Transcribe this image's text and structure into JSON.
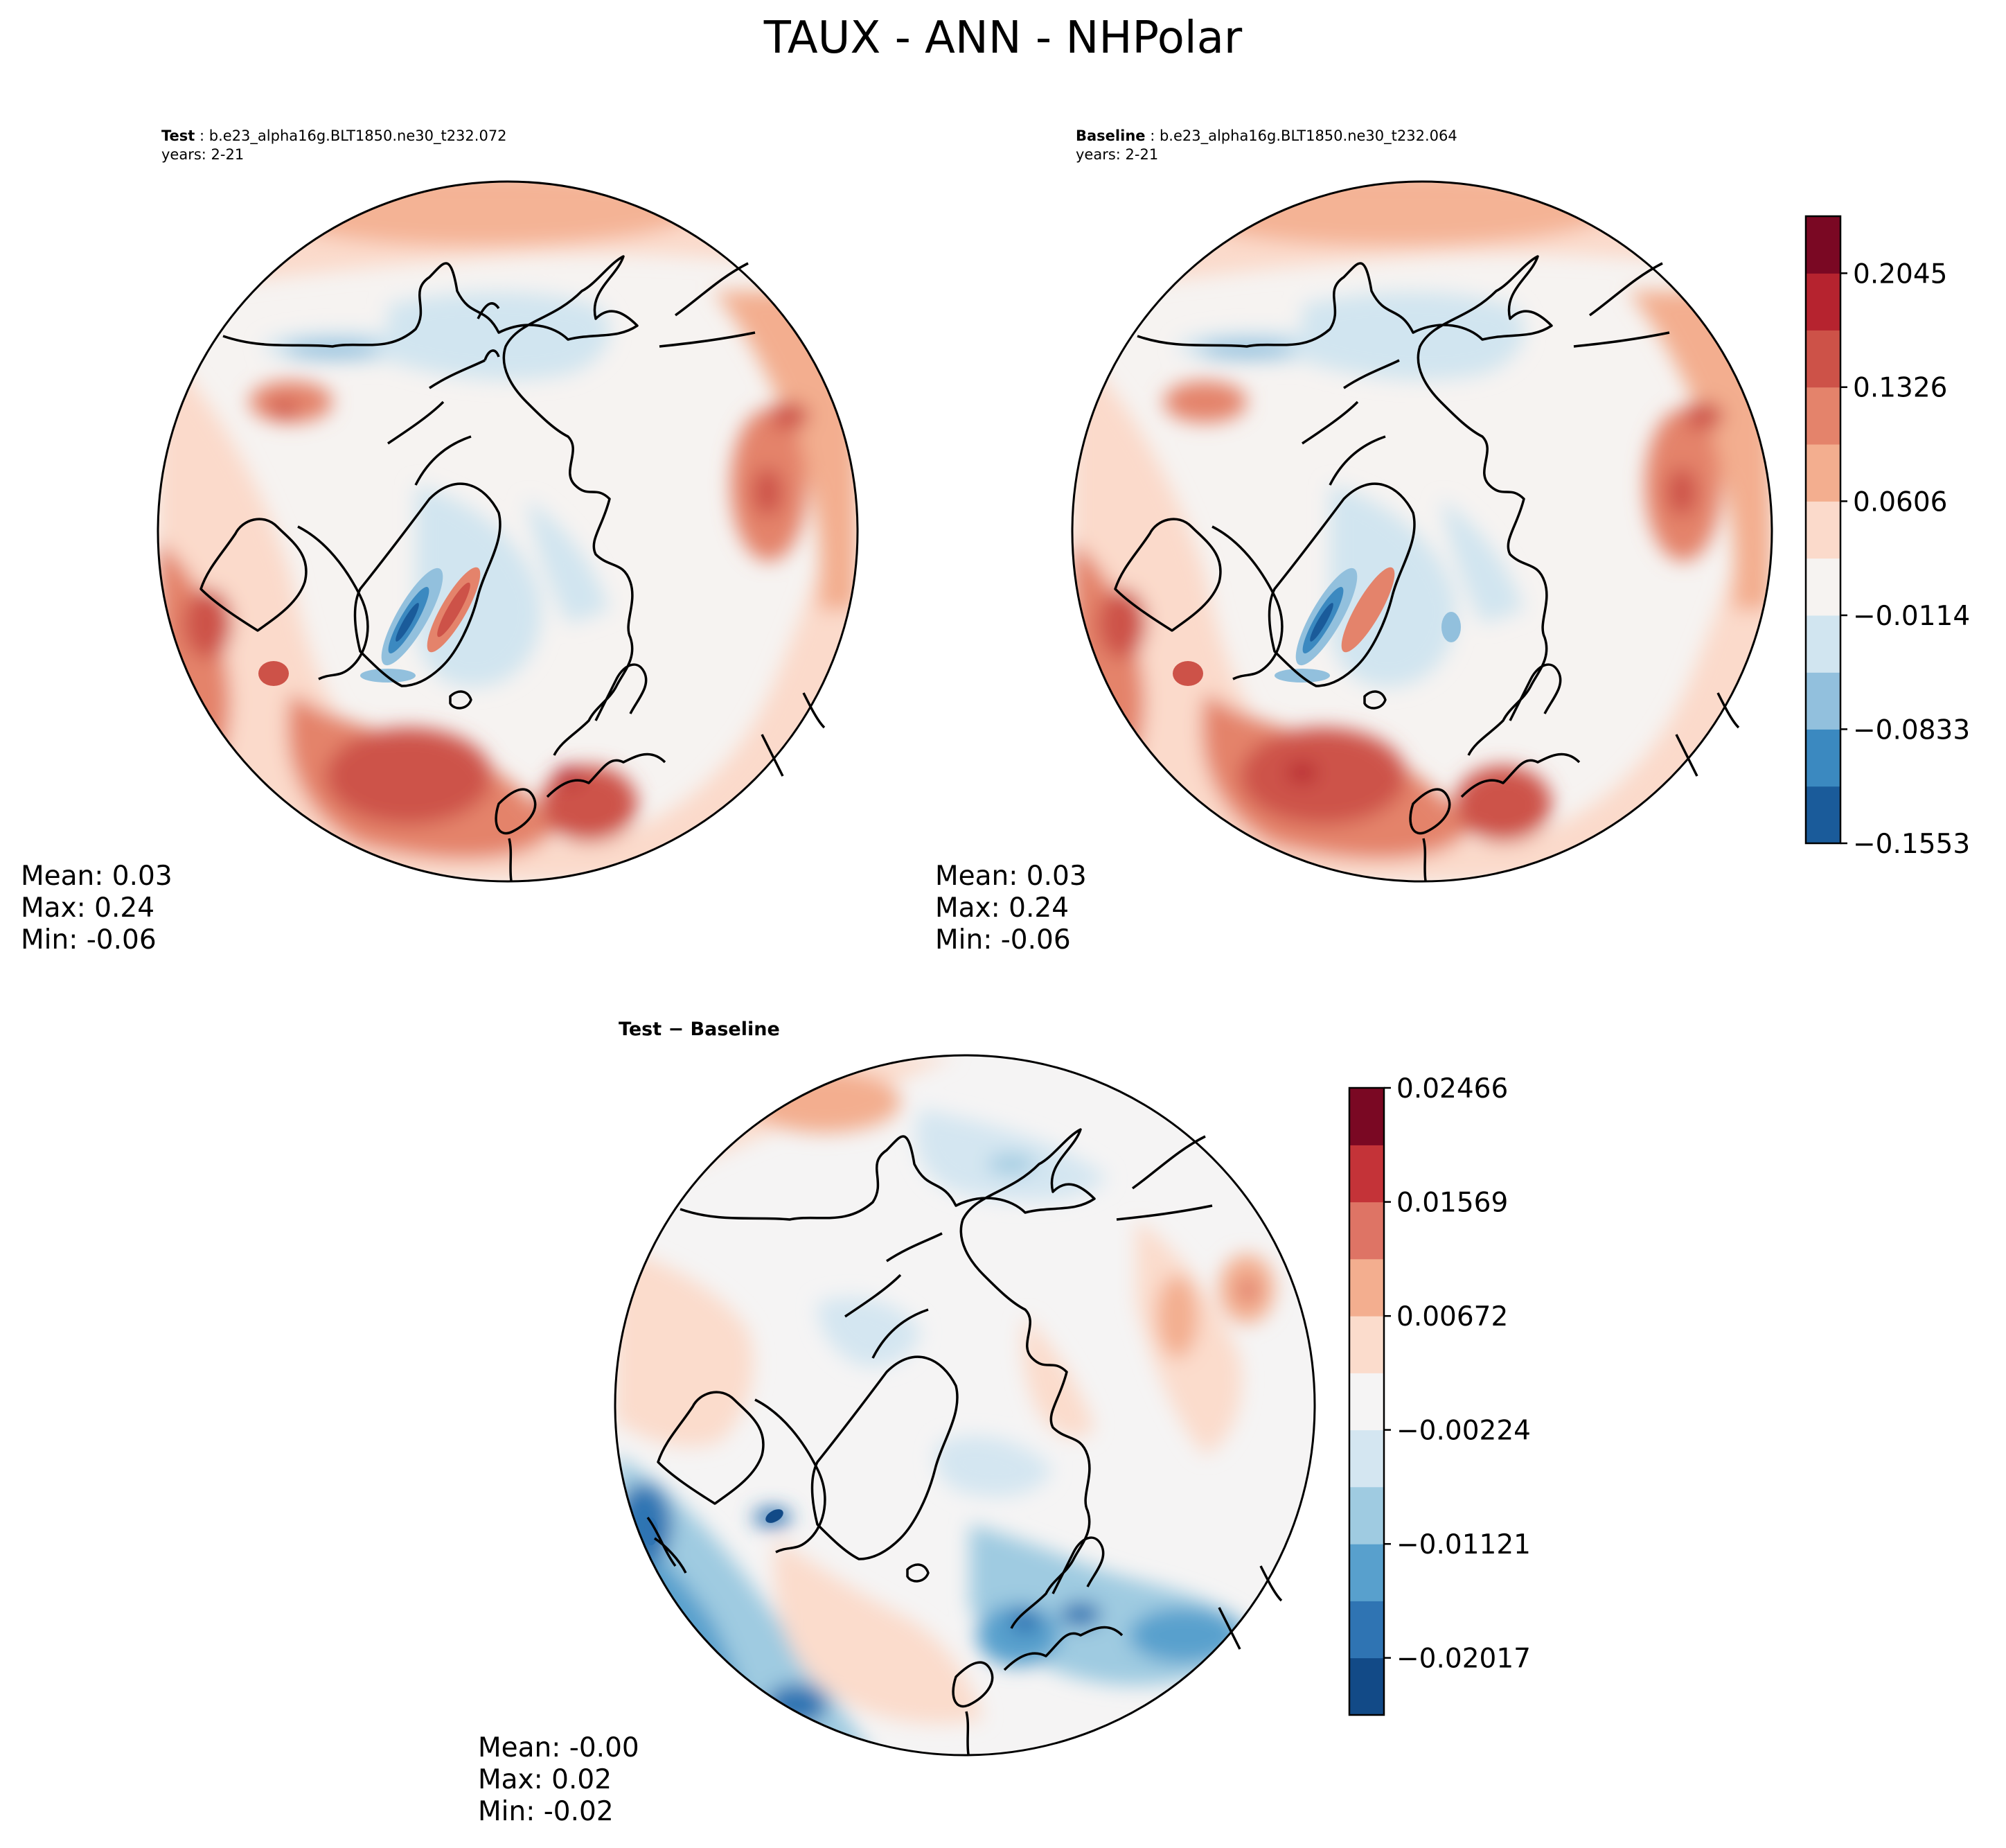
{
  "figure": {
    "title": "TAUX - ANN - NHPolar"
  },
  "panels": {
    "test": {
      "label": "Test",
      "case": "b.e23_alpha16g.BLT1850.ne30_t232.072",
      "years": "years: 2-21",
      "stats": {
        "mean": "Mean:  0.03",
        "max": "Max:  0.24",
        "min": "Min: -0.06"
      }
    },
    "baseline": {
      "label": "Baseline",
      "case": "b.e23_alpha16g.BLT1850.ne30_t232.064",
      "years": "years: 2-21",
      "stats": {
        "mean": "Mean:  0.03",
        "max": "Max:  0.24",
        "min": "Min: -0.06"
      }
    },
    "diff": {
      "title": "Test − Baseline",
      "stats": {
        "mean": "Mean: -0.00",
        "max": "Max:  0.02",
        "min": "Min: -0.02"
      }
    }
  },
  "chart_data": [
    {
      "type": "heatmap",
      "name": "Test",
      "projection": "north-polar-stereographic",
      "variable": "TAUX",
      "season": "ANN",
      "mean": 0.03,
      "max": 0.24,
      "min": -0.06,
      "colorbar": "shared-main"
    },
    {
      "type": "heatmap",
      "name": "Baseline",
      "projection": "north-polar-stereographic",
      "variable": "TAUX",
      "season": "ANN",
      "mean": 0.03,
      "max": 0.24,
      "min": -0.06,
      "colorbar": "shared-main"
    },
    {
      "type": "heatmap",
      "name": "Test - Baseline",
      "projection": "north-polar-stereographic",
      "mean": -0.0,
      "max": 0.02,
      "min": -0.02,
      "colorbar": "diff"
    }
  ],
  "colorbars": {
    "main": {
      "levels": [
        -0.1553,
        -0.1193,
        -0.0833,
        -0.0474,
        -0.0114,
        0.0246,
        0.0606,
        0.0966,
        0.1326,
        0.1686,
        0.2045,
        0.2405
      ],
      "colors": [
        "#1a5b9a",
        "#3b89c0",
        "#92c0dd",
        "#d1e5f0",
        "#f6f3f1",
        "#fbdacb",
        "#f3ae8f",
        "#e4836b",
        "#cd5248",
        "#b6232f",
        "#7a0823"
      ],
      "tick_labels": [
        "0.2045",
        "0.1326",
        "0.0606",
        "−0.0114",
        "−0.0833",
        "−0.1553"
      ],
      "tick_values": [
        0.2045,
        0.1326,
        0.0606,
        -0.0114,
        -0.0833,
        -0.1553
      ]
    },
    "diff": {
      "levels": [
        -0.02466,
        -0.02017,
        -0.01569,
        -0.01121,
        -0.00672,
        -0.00224,
        0.00224,
        0.00672,
        0.01121,
        0.01569,
        0.02017,
        0.02466
      ],
      "colors": [
        "#124a87",
        "#2f74b3",
        "#58a0cd",
        "#9fcbe1",
        "#d4e6f1",
        "#f5f4f4",
        "#fbdccc",
        "#f3ae8f",
        "#de7465",
        "#c43338",
        "#7a0823"
      ],
      "tick_labels": [
        "0.02466",
        "0.01569",
        "0.00672",
        "−0.00224",
        "−0.01121",
        "−0.02017"
      ],
      "tick_values": [
        0.02466,
        0.01569,
        0.00672,
        -0.00224,
        -0.01121,
        -0.02017
      ]
    }
  },
  "colors": {
    "coastline": "#000000",
    "background": "#ffffff"
  }
}
